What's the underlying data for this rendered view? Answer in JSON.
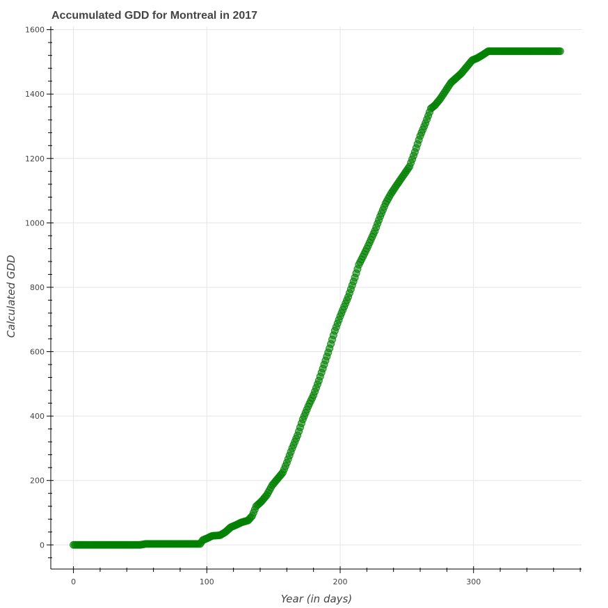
{
  "chart_data": {
    "type": "scatter",
    "title": "Accumulated GDD for Montreal in 2017",
    "xlabel": "Year (in days)",
    "ylabel": "Calculated GDD",
    "xlim": [
      -17,
      381
    ],
    "ylim": [
      -75,
      1610
    ],
    "x_ticks": [
      0,
      100,
      200,
      300
    ],
    "y_ticks": [
      0,
      200,
      400,
      600,
      800,
      1000,
      1200,
      1400,
      1600
    ],
    "grid": true,
    "marker_color": "#008000",
    "series": [
      {
        "x_range": [
          0,
          365
        ],
        "curve": [
          [
            0,
            0
          ],
          [
            50,
            0
          ],
          [
            54,
            3
          ],
          [
            95,
            3
          ],
          [
            97,
            15
          ],
          [
            100,
            20
          ],
          [
            104,
            28
          ],
          [
            110,
            30
          ],
          [
            114,
            40
          ],
          [
            118,
            55
          ],
          [
            122,
            62
          ],
          [
            126,
            70
          ],
          [
            131,
            76
          ],
          [
            134,
            90
          ],
          [
            137,
            120
          ],
          [
            141,
            135
          ],
          [
            145,
            155
          ],
          [
            149,
            185
          ],
          [
            153,
            205
          ],
          [
            157,
            225
          ],
          [
            160,
            255
          ],
          [
            164,
            300
          ],
          [
            168,
            340
          ],
          [
            172,
            390
          ],
          [
            176,
            430
          ],
          [
            180,
            465
          ],
          [
            184,
            510
          ],
          [
            188,
            560
          ],
          [
            192,
            610
          ],
          [
            196,
            665
          ],
          [
            200,
            710
          ],
          [
            206,
            770
          ],
          [
            211,
            830
          ],
          [
            214,
            870
          ],
          [
            220,
            920
          ],
          [
            226,
            975
          ],
          [
            230,
            1020
          ],
          [
            234,
            1060
          ],
          [
            238,
            1090
          ],
          [
            242,
            1115
          ],
          [
            247,
            1145
          ],
          [
            252,
            1175
          ],
          [
            256,
            1220
          ],
          [
            260,
            1270
          ],
          [
            264,
            1310
          ],
          [
            268,
            1355
          ],
          [
            271,
            1365
          ],
          [
            275,
            1385
          ],
          [
            279,
            1410
          ],
          [
            283,
            1435
          ],
          [
            287,
            1450
          ],
          [
            291,
            1465
          ],
          [
            295,
            1485
          ],
          [
            299,
            1505
          ],
          [
            303,
            1512
          ],
          [
            307,
            1522
          ],
          [
            311,
            1533
          ],
          [
            365,
            1533
          ]
        ]
      }
    ]
  }
}
